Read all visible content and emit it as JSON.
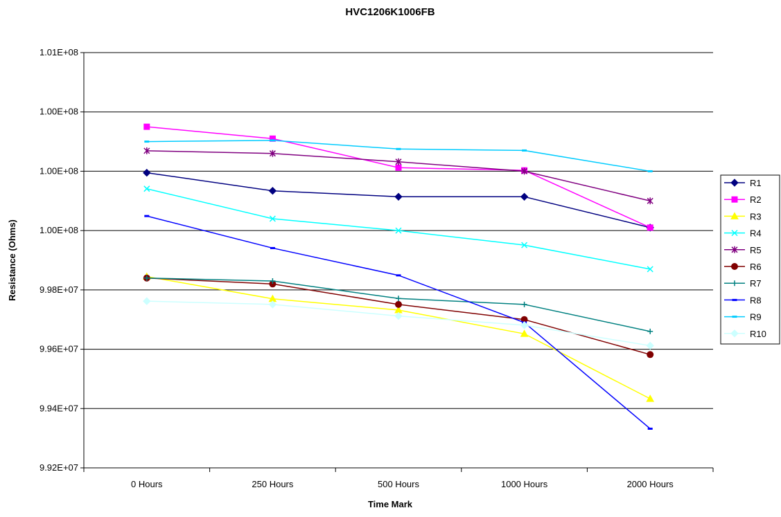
{
  "chart_data": {
    "type": "line",
    "title": "HVC1206K1006FB",
    "xlabel": "Time Mark",
    "ylabel": "Resistance (Ohms)",
    "categories": [
      "0  Hours",
      "250  Hours",
      "500  Hours",
      "1000 Hours",
      "2000 Hours"
    ],
    "y_ticks": [
      {
        "value": 99200000,
        "label": "9.92E+07"
      },
      {
        "value": 99400000,
        "label": "9.94E+07"
      },
      {
        "value": 99600000,
        "label": "9.96E+07"
      },
      {
        "value": 99800000,
        "label": "9.98E+07"
      },
      {
        "value": 100000000,
        "label": "1.00E+08"
      },
      {
        "value": 100200000,
        "label": "1.00E+08"
      },
      {
        "value": 100400000,
        "label": "1.00E+08"
      },
      {
        "value": 100600000,
        "label": "1.01E+08"
      }
    ],
    "ylim": [
      99200000,
      100600000
    ],
    "grid": true,
    "legend_position": "right",
    "series": [
      {
        "name": "R1",
        "color": "#000080",
        "marker": "diamond",
        "values": [
          100195000,
          100134000,
          100114000,
          100114000,
          100010000
        ]
      },
      {
        "name": "R2",
        "color": "#FF00FF",
        "marker": "square",
        "values": [
          100350000,
          100310000,
          100212000,
          100203000,
          100010000
        ]
      },
      {
        "name": "R3",
        "color": "#FFFF00",
        "marker": "triangle",
        "values": [
          99845000,
          99770000,
          99732000,
          99652000,
          99433000
        ]
      },
      {
        "name": "R4",
        "color": "#00FFFF",
        "marker": "x",
        "values": [
          100141000,
          100040000,
          100000000,
          99951000,
          99870000
        ]
      },
      {
        "name": "R5",
        "color": "#800080",
        "marker": "star",
        "values": [
          100269000,
          100260000,
          100232000,
          100200000,
          100100000
        ]
      },
      {
        "name": "R6",
        "color": "#800000",
        "marker": "circle",
        "values": [
          99840000,
          99820000,
          99751000,
          99700000,
          99582000
        ]
      },
      {
        "name": "R7",
        "color": "#008080",
        "marker": "plus",
        "values": [
          99840000,
          99830000,
          99771000,
          99751000,
          99660000
        ]
      },
      {
        "name": "R8",
        "color": "#0000FF",
        "marker": "dash",
        "values": [
          100049000,
          99941000,
          99849000,
          99690000,
          99332000
        ]
      },
      {
        "name": "R9",
        "color": "#00CCFF",
        "marker": "dash",
        "values": [
          100300000,
          100304000,
          100275000,
          100270000,
          100200000
        ]
      },
      {
        "name": "R10",
        "color": "#CCFFFF",
        "marker": "diamond",
        "values": [
          99762000,
          99751000,
          99712000,
          99681000,
          99612000
        ]
      }
    ]
  }
}
